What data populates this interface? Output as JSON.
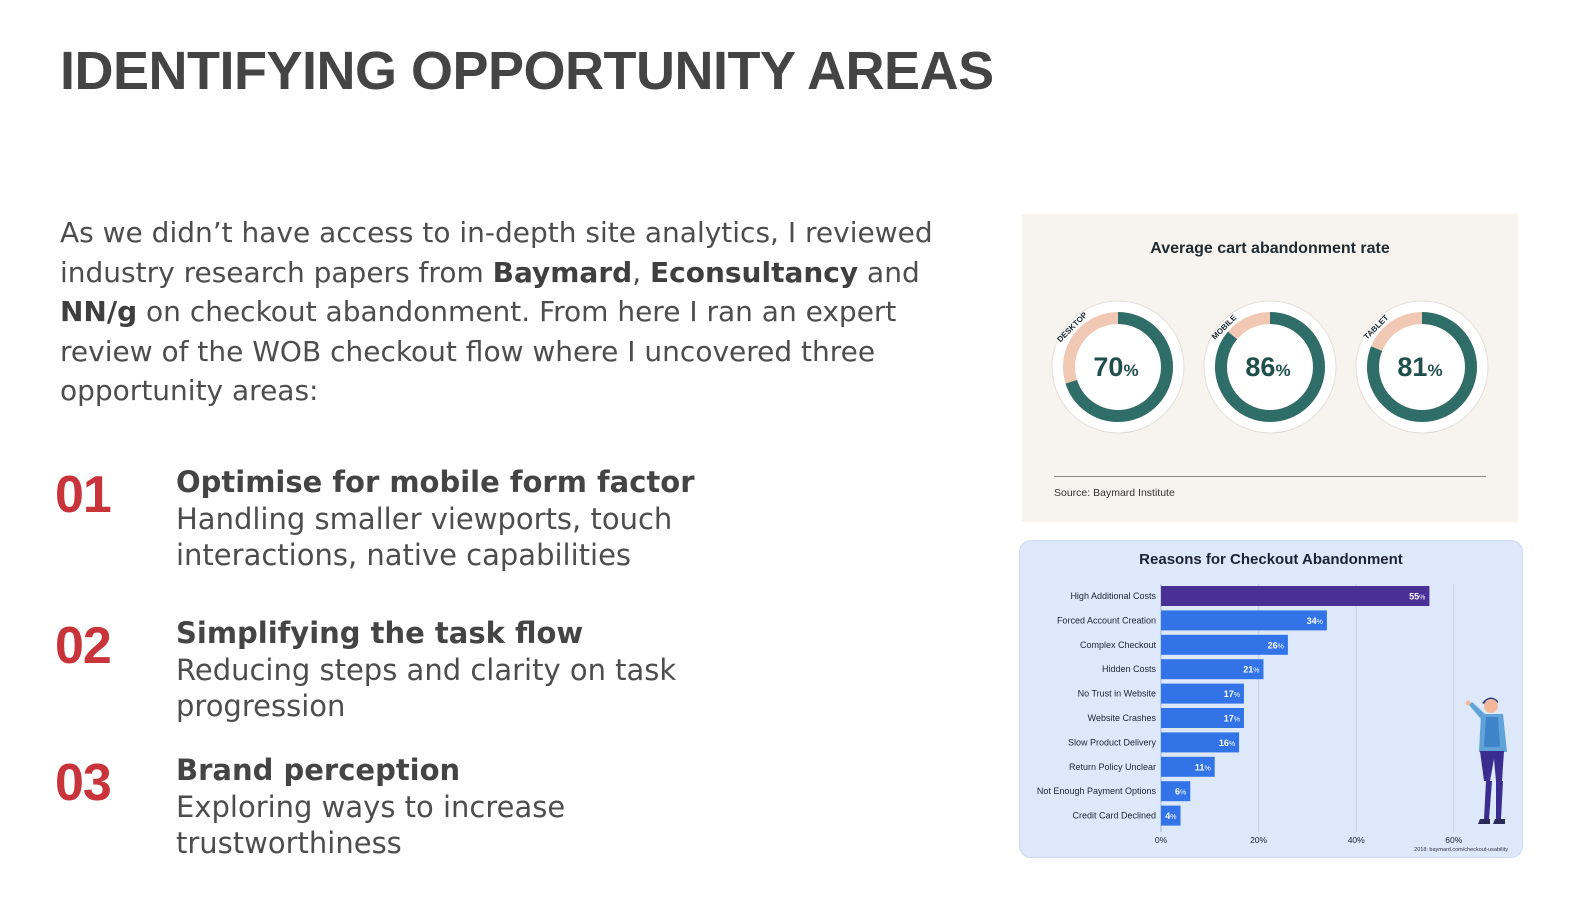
{
  "page": {
    "title": "IDENTIFYING OPPORTUNITY AREAS",
    "intro": {
      "p1": "As we didn’t have access to in-depth site analytics, I reviewed industry research papers from ",
      "b1": "Baymard",
      "p2": ", ",
      "b2": "Econsultancy",
      "p3": " and ",
      "b3": "NN/g",
      "p4": " on checkout abandonment. From here I ran an expert review of the WOB checkout flow where I uncovered three opportunity areas:"
    },
    "opportunities": [
      {
        "number": "01",
        "heading": "Optimise for mobile form factor",
        "description": "Handling smaller viewports, touch interactions, native capabilities"
      },
      {
        "number": "02",
        "heading": "Simplifying the task flow",
        "description": "Reducing steps and clarity on task progression"
      },
      {
        "number": "03",
        "heading": "Brand perception",
        "description": "Exploring ways to increase trustworthiness"
      }
    ]
  },
  "colors": {
    "accent_red": "#c9343a",
    "ring_teal": "#2f6e68",
    "ring_peach": "#f1c8b4",
    "bar_blue": "#3273e8",
    "bar_purple": "#4a2f96"
  },
  "chart_data": [
    {
      "type": "pie",
      "title": "Average cart abandonment rate",
      "source": "Source: Baymard Institute",
      "unit": "%",
      "series": [
        {
          "name": "DESKTOP",
          "value": 70
        },
        {
          "name": "MOBILE",
          "value": 86
        },
        {
          "name": "TABLET",
          "value": 81
        }
      ]
    },
    {
      "type": "bar",
      "orientation": "horizontal",
      "title": "Reasons for Checkout Abandonment",
      "categories": [
        "High Additional Costs",
        "Forced Account Creation",
        "Complex Checkout",
        "Hidden Costs",
        "No Trust in Website",
        "Website Crashes",
        "Slow Product Delivery",
        "Return Policy Unclear",
        "Not Enough Payment Options",
        "Credit Card Declined"
      ],
      "values": [
        55,
        34,
        26,
        21,
        17,
        17,
        16,
        11,
        6,
        4
      ],
      "unit": "%",
      "xlim": [
        0,
        60
      ],
      "xticks": [
        "0%",
        "20%",
        "40%",
        "60%"
      ],
      "grid": true,
      "highlight_index": 0,
      "footnote": "2018: baymard.com/checkout-usability"
    }
  ]
}
